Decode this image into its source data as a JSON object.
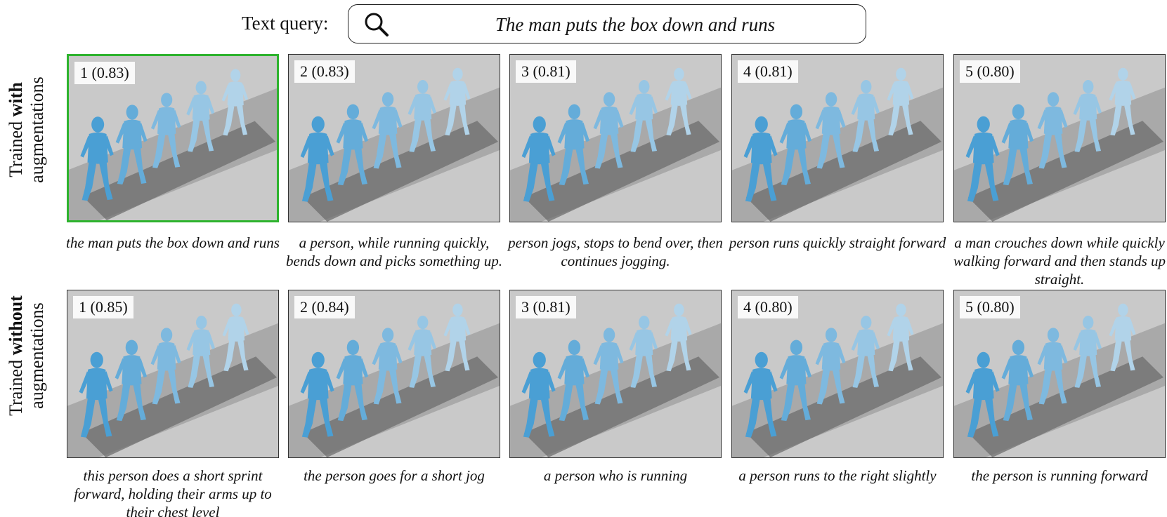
{
  "query": {
    "label": "Text query:",
    "text": "The man puts the box down and runs",
    "icon": "search-icon"
  },
  "rows": [
    {
      "label_prefix": "Trained ",
      "label_bold": "with",
      "label_suffix": "augmentations",
      "results": [
        {
          "rank": "1 (0.83)",
          "caption": "the man puts the box down and runs",
          "selected": true
        },
        {
          "rank": "2 (0.83)",
          "caption": "a person, while running quickly, bends down and picks something up.",
          "selected": false
        },
        {
          "rank": "3 (0.81)",
          "caption": "person jogs, stops to bend over, then continues jogging.",
          "selected": false
        },
        {
          "rank": "4 (0.81)",
          "caption": "person runs quickly straight forward",
          "selected": false
        },
        {
          "rank": "5 (0.80)",
          "caption": "a man crouches down while quickly walking forward and then stands up straight.",
          "selected": false
        }
      ]
    },
    {
      "label_prefix": "Trained ",
      "label_bold": "without",
      "label_suffix": "augmentations",
      "results": [
        {
          "rank": "1 (0.85)",
          "caption": "this person does a short sprint forward, holding their arms up to their chest level",
          "selected": false
        },
        {
          "rank": "2 (0.84)",
          "caption": "the person goes for a short jog",
          "selected": false
        },
        {
          "rank": "3 (0.81)",
          "caption": "a person who is running",
          "selected": false
        },
        {
          "rank": "4 (0.80)",
          "caption": "a person runs to the right slightly",
          "selected": false
        },
        {
          "rank": "5 (0.80)",
          "caption": "the person is running forward",
          "selected": false
        }
      ]
    }
  ],
  "colors": {
    "selected_border": "#2db32d",
    "figure_blue": "#4a9fd4",
    "background_grey": "#c9c9c9",
    "floor_grey": "#a9a9a9",
    "mat_grey": "#6e6e6e"
  }
}
